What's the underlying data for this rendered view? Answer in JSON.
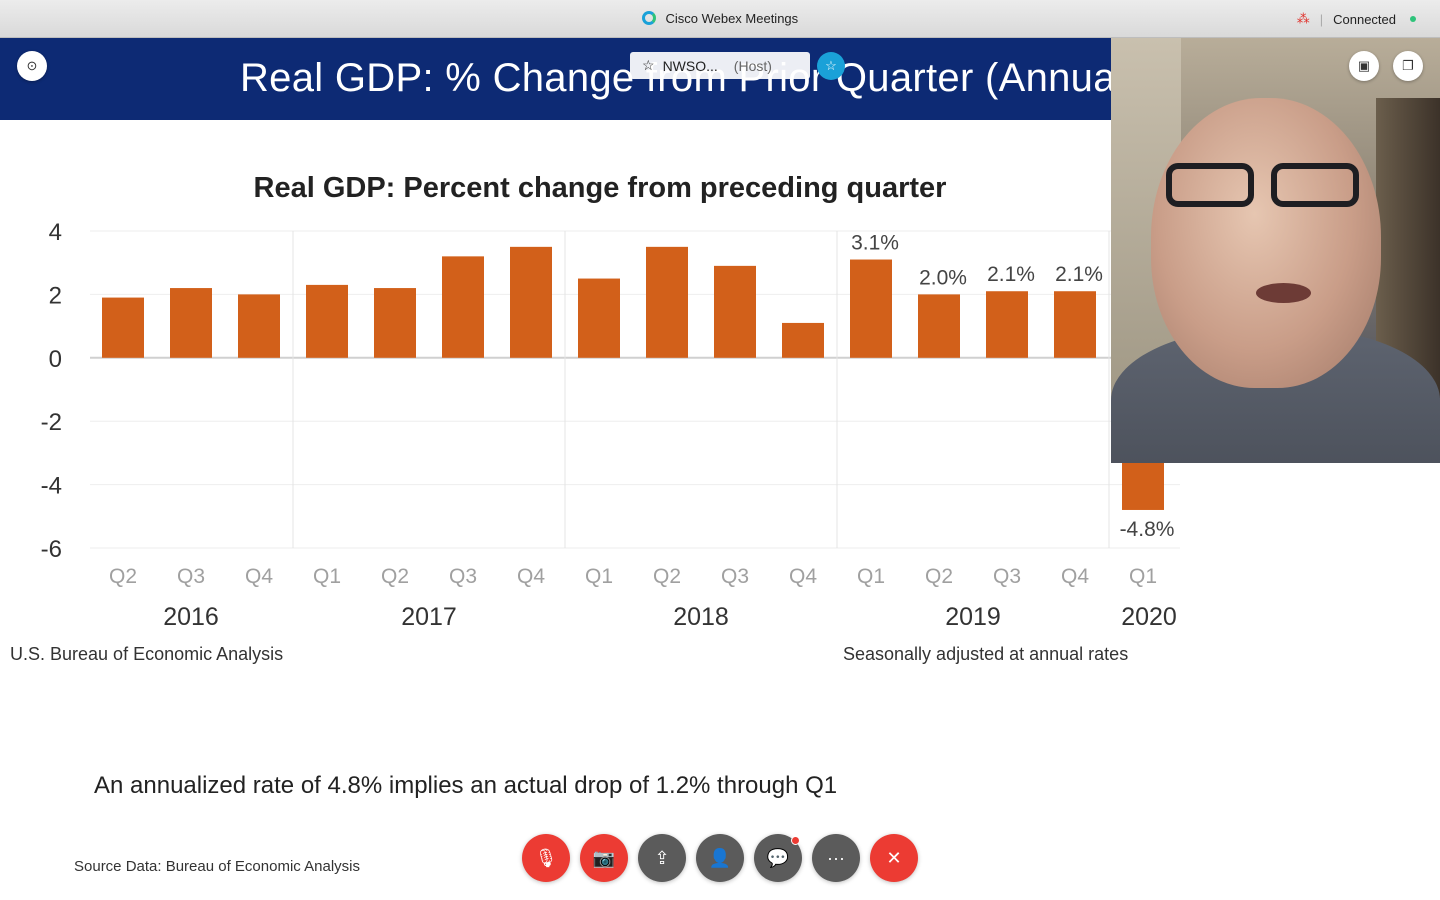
{
  "window": {
    "app_title": "Cisco Webex Meetings",
    "status": "Connected",
    "icons": {
      "logo": "webex-logo-icon",
      "mic": "mic-muted-icon",
      "status": "green-dot"
    }
  },
  "slide": {
    "banner_title": "Real GDP:  % Change from Prior Quarter (Annual",
    "source_left": "U.S. Bureau of Economic Analysis",
    "source_right": "Seasonally adjusted at annual rates",
    "note": "An annualized rate of 4.8% implies an actual drop of 1.2% through Q1",
    "source_data": "Source Data: Bureau of Economic Analysis"
  },
  "chart_data": {
    "type": "bar",
    "title": "Real GDP:  Percent change from preceding quarter",
    "categories": [
      "Q2",
      "Q3",
      "Q4",
      "Q1",
      "Q2",
      "Q3",
      "Q4",
      "Q1",
      "Q2",
      "Q3",
      "Q4",
      "Q1",
      "Q2",
      "Q3",
      "Q4",
      "Q1"
    ],
    "values": [
      1.9,
      2.2,
      2.0,
      2.3,
      2.2,
      3.2,
      3.5,
      2.5,
      3.5,
      2.9,
      1.1,
      3.1,
      2.0,
      2.1,
      2.1,
      -4.8
    ],
    "data_labels": [
      "",
      "",
      "",
      "",
      "",
      "",
      "",
      "",
      "",
      "",
      "",
      "3.1%",
      "2.0%",
      "2.1%",
      "2.1%",
      "-4.8%"
    ],
    "years": [
      {
        "label": "2016",
        "start": 0,
        "end": 2
      },
      {
        "label": "2017",
        "start": 3,
        "end": 6
      },
      {
        "label": "2018",
        "start": 7,
        "end": 10
      },
      {
        "label": "2019",
        "start": 11,
        "end": 14
      },
      {
        "label": "2020",
        "start": 15,
        "end": 15
      }
    ],
    "y_ticks": [
      "4",
      "2",
      "0",
      "-2",
      "-4",
      "-6"
    ],
    "ylim": [
      -6,
      4
    ],
    "grid": true,
    "bar_color": "#d2601a"
  },
  "overlay": {
    "host_name": "NWSO...",
    "host_tag": "(Host)",
    "pin_icon": "pin-icon"
  },
  "controls": [
    {
      "name": "mute-button",
      "icon": "mic-muted-icon",
      "glyph": "🎙",
      "style": "red"
    },
    {
      "name": "video-button",
      "icon": "camera-off-icon",
      "glyph": "📷",
      "style": "red"
    },
    {
      "name": "share-button",
      "icon": "share-icon",
      "glyph": "⇪",
      "style": "gray"
    },
    {
      "name": "participants-button",
      "icon": "participants-icon",
      "glyph": "👤",
      "style": "gray"
    },
    {
      "name": "chat-button",
      "icon": "chat-icon",
      "glyph": "💬",
      "style": "gray"
    },
    {
      "name": "more-button",
      "icon": "more-icon",
      "glyph": "···",
      "style": "gray"
    },
    {
      "name": "leave-button",
      "icon": "close-icon",
      "glyph": "✕",
      "style": "red"
    }
  ]
}
